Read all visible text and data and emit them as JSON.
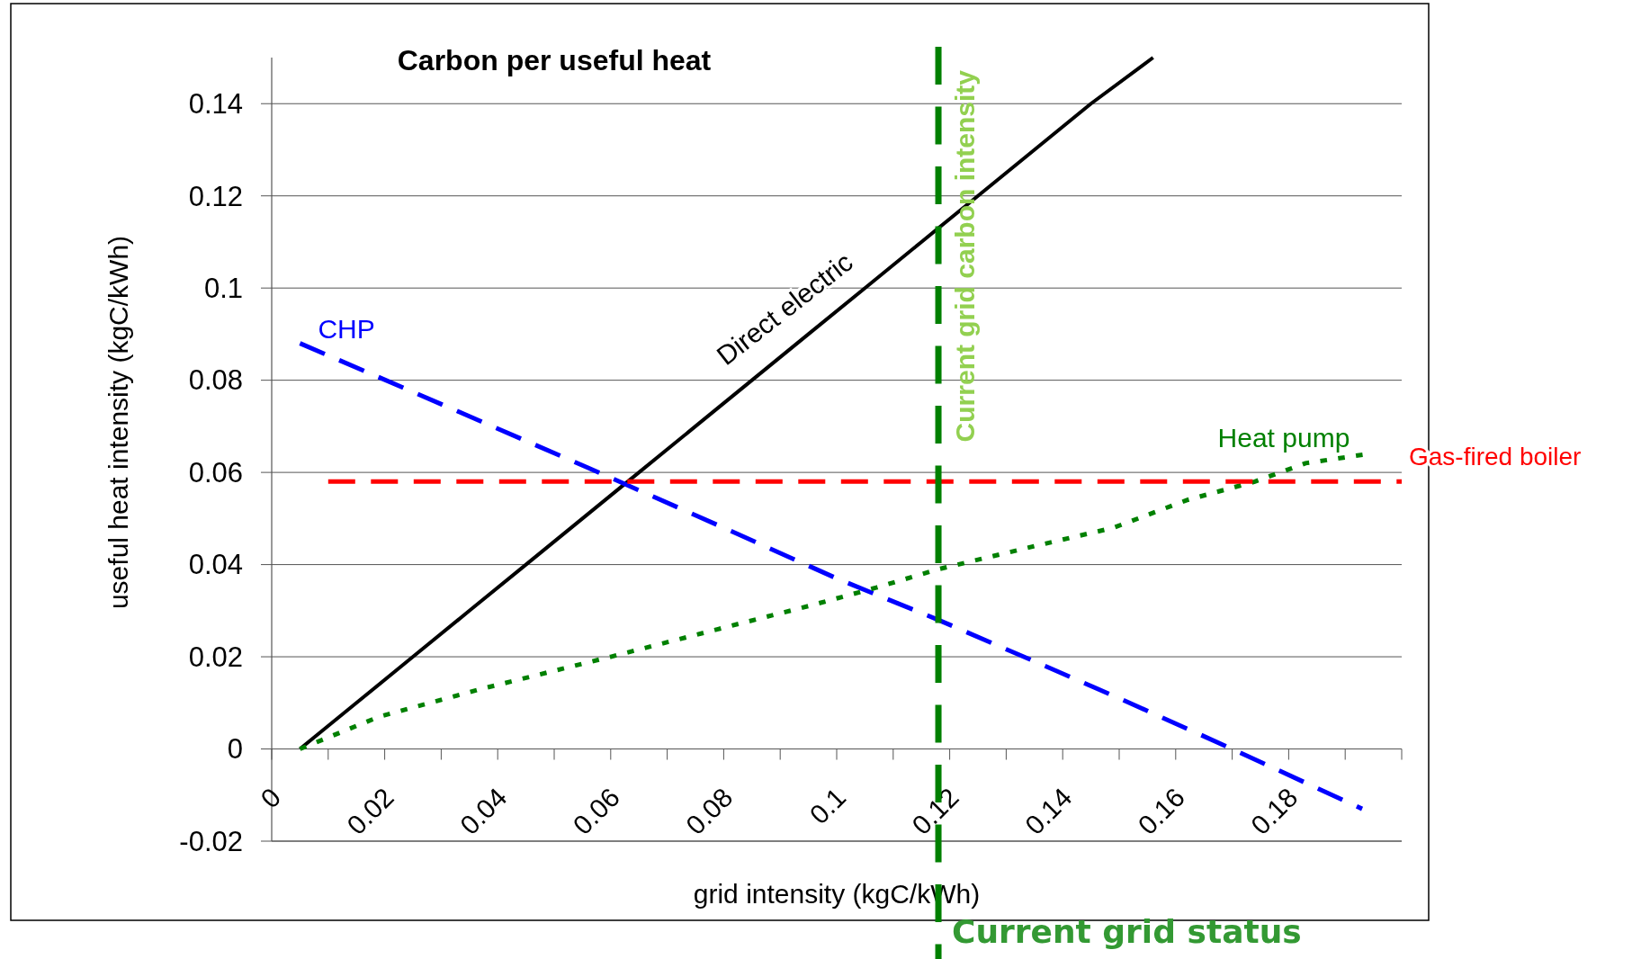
{
  "chart_data": {
    "type": "line",
    "title": "Carbon per useful heat",
    "xlabel": "grid intensity (kgC/kWh)",
    "ylabel": "useful heat intensity  (kgC/kWh)",
    "xlim": [
      0,
      0.2
    ],
    "xticks": [
      0,
      0.02,
      0.04,
      0.06,
      0.08,
      0.1,
      0.12,
      0.14,
      0.16,
      0.18
    ],
    "ylim": [
      -0.02,
      0.15
    ],
    "yticks": [
      -0.02,
      0,
      0.02,
      0.04,
      0.06,
      0.08,
      0.1,
      0.12,
      0.14
    ],
    "grid": "y",
    "legend": false,
    "marker": "none",
    "series": [
      {
        "name": "Direct electric",
        "color": "#000000",
        "line_style": "solid",
        "x": [
          0.005,
          0.015,
          0.025,
          0.035,
          0.045,
          0.055,
          0.065,
          0.075,
          0.085,
          0.095,
          0.105,
          0.115,
          0.125,
          0.135,
          0.145,
          0.156
        ],
        "values": [
          0,
          0.01,
          0.02,
          0.03,
          0.04,
          0.05,
          0.06,
          0.07,
          0.08,
          0.09,
          0.1,
          0.11,
          0.12,
          0.13,
          0.14,
          0.15
        ]
      },
      {
        "name": "CHP",
        "color": "#0000ff",
        "line_style": "dashed",
        "x": [
          0.005,
          0.024,
          0.056,
          0.08,
          0.1,
          0.118,
          0.135,
          0.15,
          0.17,
          0.193
        ],
        "values": [
          0.088,
          0.078,
          0.061,
          0.048,
          0.037,
          0.028,
          0.019,
          0.011,
          0,
          -0.013
        ]
      },
      {
        "name": "Heat pump",
        "color": "#008000",
        "line_style": "dotted",
        "x": [
          0.005,
          0.019,
          0.037,
          0.06,
          0.079,
          0.095,
          0.107,
          0.118,
          0.135,
          0.149,
          0.162,
          0.174,
          0.183,
          0.194
        ],
        "values": [
          0,
          0.007,
          0.013,
          0.02,
          0.026,
          0.031,
          0.035,
          0.039,
          0.044,
          0.048,
          0.054,
          0.058,
          0.062,
          0.064
        ]
      },
      {
        "name": "Gas-fired boiler",
        "color": "#ff0000",
        "line_style": "dashed",
        "x": [
          0.01,
          0.2
        ],
        "values": [
          0.058,
          0.058
        ]
      }
    ],
    "ref_lines": [
      {
        "axis": "x",
        "value": 0.118,
        "label": "Current grid carbon intensity",
        "color": "#008000",
        "line_style": "dashed"
      }
    ],
    "annotations": [
      "Current grid status"
    ]
  }
}
